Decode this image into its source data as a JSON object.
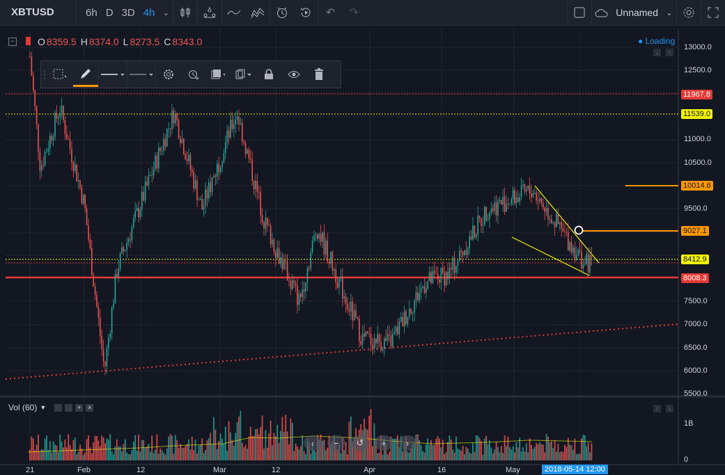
{
  "header": {
    "symbol": "XBTUSD",
    "timeframes": [
      "6h",
      "D",
      "3D",
      "4h"
    ],
    "active_timeframe": "4h",
    "layout_name": "Unnamed"
  },
  "legend": {
    "o_label": "O",
    "o_value": "8359.5",
    "h_label": "H",
    "h_value": "8374.0",
    "l_label": "L",
    "l_value": "8273.5",
    "c_label": "C",
    "c_value": "8343.0"
  },
  "status": {
    "loading": "● Loading"
  },
  "volume": {
    "label": "Vol (60)",
    "axis_top": "1B",
    "axis_bottom": "0"
  },
  "price_axis": {
    "ticks": [
      "13000.0",
      "12500.0",
      "12000.0",
      "11000.0",
      "10500.0",
      "10000.0",
      "9500.0",
      "9000.0",
      "8500.0",
      "8000.0",
      "7500.0",
      "7000.0",
      "6500.0",
      "6000.0",
      "5500.0"
    ]
  },
  "time_axis": {
    "ticks": [
      "21",
      "Feb",
      "12",
      "Mar",
      "12",
      "Apr",
      "16",
      "May"
    ],
    "cursor_label": "2018-05-14 12:00"
  },
  "price_labels": [
    {
      "value": "11967.8",
      "color": "#e53935"
    },
    {
      "value": "11539.0",
      "color": "#f5f500"
    },
    {
      "value": "10014.6",
      "color": "#ff9800"
    },
    {
      "value": "9027.1",
      "color": "#ff9800"
    },
    {
      "value": "8412.9",
      "color": "#f5f500"
    },
    {
      "value": "8008.3",
      "color": "#e53935"
    }
  ],
  "nav": [
    "‹",
    "−",
    "↺",
    "+",
    "›"
  ],
  "colors": {
    "up": "#26a69a",
    "down": "#ef5350",
    "accent": "#2196f3",
    "bg": "#131722"
  },
  "chart_data": {
    "type": "candlestick",
    "symbol": "XBTUSD",
    "interval": "4h",
    "ylim": [
      5500,
      13000
    ],
    "x_ticks": [
      "21",
      "Feb",
      "12",
      "Mar",
      "12",
      "Apr",
      "16",
      "May"
    ],
    "approx_close_path": [
      {
        "x": "Jan 21",
        "y": 12800
      },
      {
        "x": "Jan 24",
        "y": 10400
      },
      {
        "x": "Jan 28",
        "y": 11700
      },
      {
        "x": "Feb 1",
        "y": 9600
      },
      {
        "x": "Feb 6",
        "y": 6000
      },
      {
        "x": "Feb 9",
        "y": 8200
      },
      {
        "x": "Feb 20",
        "y": 11600
      },
      {
        "x": "Feb 25",
        "y": 9500
      },
      {
        "x": "Mar 5",
        "y": 11600
      },
      {
        "x": "Mar 12",
        "y": 9200
      },
      {
        "x": "Mar 18",
        "y": 7500
      },
      {
        "x": "Mar 21",
        "y": 9100
      },
      {
        "x": "Mar 30",
        "y": 6700
      },
      {
        "x": "Apr 6",
        "y": 6600
      },
      {
        "x": "Apr 12",
        "y": 7900
      },
      {
        "x": "Apr 17",
        "y": 8100
      },
      {
        "x": "Apr 24",
        "y": 9500
      },
      {
        "x": "May 5",
        "y": 9900
      },
      {
        "x": "May 12",
        "y": 8300
      },
      {
        "x": "May 14",
        "y": 8343
      }
    ],
    "horizontal_levels": [
      11967.8,
      11539.0,
      10014.6,
      9027.1,
      8412.9,
      8008.3
    ],
    "trendlines": [
      {
        "style": "dotted",
        "color": "#e53935",
        "from": {
          "x": "Jan 13",
          "y": 5800
        },
        "to": {
          "x": "May 31",
          "y": 7000
        }
      },
      {
        "style": "solid",
        "color": "#f5f500",
        "from": {
          "x": "May 6",
          "y": 10000
        },
        "to": {
          "x": "May 15",
          "y": 8300
        }
      },
      {
        "style": "solid",
        "color": "#f5f500",
        "from": {
          "x": "May 5",
          "y": 8900
        },
        "to": {
          "x": "May 14",
          "y": 8050
        }
      }
    ]
  }
}
